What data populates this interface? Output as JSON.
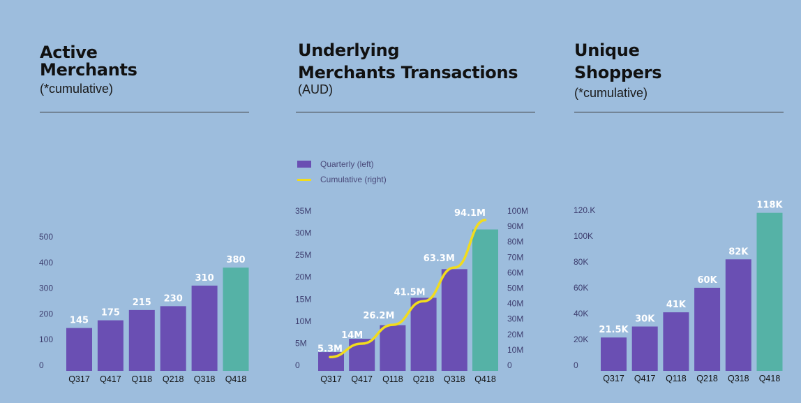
{
  "colors": {
    "bar": "#6a4fb3",
    "highlight": "#55b2a6",
    "line": "#f2dc1d",
    "tick": "#3d3d6e",
    "background": "#9dbddd"
  },
  "panels": [
    {
      "title_line1": "Active",
      "title_line2": "Merchants",
      "subtitle": "(*cumulative)"
    },
    {
      "title_line1": "Underlying",
      "title_line2": "Merchants Transactions",
      "subtitle": "(AUD)"
    },
    {
      "title_line1": "Unique",
      "title_line2": "Shoppers",
      "subtitle": "(*cumulative)"
    }
  ],
  "legend": {
    "bar_label": "Quarterly (left)",
    "line_label": "Cumulative (right)"
  },
  "chart_data": [
    {
      "type": "bar",
      "categories": [
        "Q317",
        "Q417",
        "Q118",
        "Q218",
        "Q318",
        "Q418"
      ],
      "values": [
        145,
        175,
        215,
        230,
        310,
        380
      ],
      "data_labels": [
        "145",
        "175",
        "215",
        "230",
        "310",
        "380"
      ],
      "yticks": [
        0,
        100,
        200,
        300,
        400,
        500
      ],
      "ytick_labels": [
        "0",
        "100",
        "200",
        "300",
        "400",
        "500"
      ],
      "ylim": [
        0,
        500
      ],
      "highlight_index": 5
    },
    {
      "type": "bar",
      "categories": [
        "Q317",
        "Q417",
        "Q118",
        "Q218",
        "Q318",
        "Q418"
      ],
      "values": [
        3,
        6,
        9.1,
        15.3,
        21.8,
        30.8
      ],
      "yticks": [
        0,
        5,
        10,
        15,
        20,
        25,
        30,
        35
      ],
      "ytick_labels": [
        "0",
        "5M",
        "10M",
        "15M",
        "20M",
        "25M",
        "30M",
        "35M"
      ],
      "ylim": [
        0,
        35
      ],
      "highlight_index": 5,
      "line_series": {
        "name": "Cumulative (right)",
        "values": [
          5.3,
          14,
          26.2,
          41.5,
          63.3,
          94.1
        ],
        "data_labels": [
          "5.3M",
          "14M",
          "26.2M",
          "41.5M",
          "63.3M",
          "94.1M"
        ]
      },
      "y2ticks": [
        0,
        10,
        20,
        30,
        40,
        50,
        60,
        70,
        80,
        90,
        100
      ],
      "y2tick_labels": [
        "0",
        "10M",
        "20M",
        "30M",
        "40M",
        "50M",
        "60M",
        "70M",
        "80M",
        "90M",
        "100M"
      ],
      "y2lim": [
        0,
        100
      ]
    },
    {
      "type": "bar",
      "categories": [
        "Q317",
        "Q417",
        "Q118",
        "Q218",
        "Q318",
        "Q418"
      ],
      "values": [
        21.5,
        30,
        41,
        60,
        82,
        118
      ],
      "data_labels": [
        "21.5K",
        "30K",
        "41K",
        "60K",
        "82K",
        "118K"
      ],
      "yticks": [
        0,
        20,
        40,
        60,
        80,
        100,
        120
      ],
      "ytick_labels": [
        "0",
        "20K",
        "40K",
        "60K",
        "80K",
        "100K",
        "120.K"
      ],
      "ylim": [
        0,
        120
      ],
      "highlight_index": 5
    }
  ]
}
